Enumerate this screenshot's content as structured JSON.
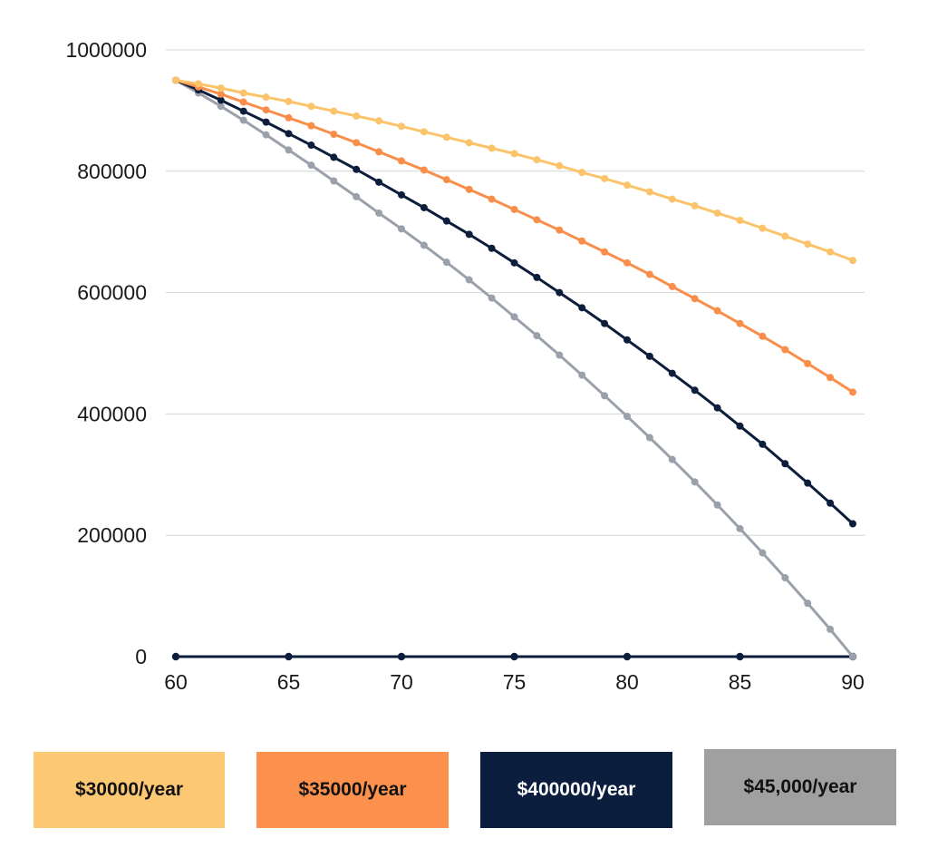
{
  "chart_data": {
    "type": "line",
    "title": "",
    "xlabel": "",
    "ylabel": "",
    "xlim": [
      60,
      90
    ],
    "ylim": [
      0,
      1000000
    ],
    "x_ticks": [
      60,
      65,
      70,
      75,
      80,
      85,
      90
    ],
    "y_ticks": [
      0,
      200000,
      400000,
      600000,
      800000,
      1000000
    ],
    "grid": true,
    "legend_position": "bottom",
    "x": [
      60,
      61,
      62,
      63,
      64,
      65,
      66,
      67,
      68,
      69,
      70,
      71,
      72,
      73,
      74,
      75,
      76,
      77,
      78,
      79,
      80,
      81,
      82,
      83,
      84,
      85,
      86,
      87,
      88,
      89,
      90
    ],
    "series": [
      {
        "name": "$30000/year",
        "color": "#fbc46a",
        "label_color": "#111111",
        "values": [
          950000,
          944000,
          937000,
          929000,
          922000,
          915000,
          907000,
          899000,
          891000,
          883000,
          874000,
          865000,
          856000,
          847000,
          838000,
          829000,
          819000,
          809000,
          798000,
          788000,
          777000,
          766000,
          754000,
          743000,
          731000,
          719000,
          706000,
          693000,
          680000,
          667000,
          653000
        ]
      },
      {
        "name": "$35000/year",
        "color": "#f98e4a",
        "label_color": "#111111",
        "values": [
          950000,
          939000,
          927000,
          914000,
          901000,
          888000,
          875000,
          861000,
          847000,
          832000,
          817000,
          802000,
          786000,
          770000,
          754000,
          737000,
          720000,
          703000,
          685000,
          667000,
          649000,
          630000,
          610000,
          590000,
          570000,
          549000,
          528000,
          506000,
          483000,
          460000,
          436000
        ]
      },
      {
        "name": "$400000/year",
        "color": "#0d1e3c",
        "label_color": "#ffffff",
        "values": [
          950000,
          934000,
          917000,
          899000,
          881000,
          862000,
          843000,
          823000,
          803000,
          782000,
          761000,
          740000,
          718000,
          696000,
          673000,
          649000,
          625000,
          600000,
          575000,
          549000,
          522000,
          495000,
          467000,
          439000,
          410000,
          380000,
          350000,
          318000,
          286000,
          253000,
          219000
        ]
      },
      {
        "name": "$45,000/year",
        "color": "#9aa1ab",
        "label_color": "#111111",
        "values": [
          950000,
          929000,
          907000,
          884000,
          860000,
          835000,
          810000,
          784000,
          758000,
          731000,
          705000,
          678000,
          650000,
          621000,
          591000,
          560000,
          529000,
          497000,
          464000,
          430000,
          396000,
          361000,
          325000,
          288000,
          250000,
          211000,
          171000,
          130000,
          88000,
          45000,
          0
        ]
      }
    ],
    "baseline": {
      "color": "#0d1e3c",
      "values": [
        0,
        0,
        0,
        0,
        0,
        0,
        0
      ],
      "x": [
        60,
        65,
        70,
        75,
        80,
        85,
        90
      ]
    },
    "legend_box_colors": [
      "#fdc873",
      "#fc914d",
      "#0b1e3e",
      "#a0a0a0"
    ]
  }
}
